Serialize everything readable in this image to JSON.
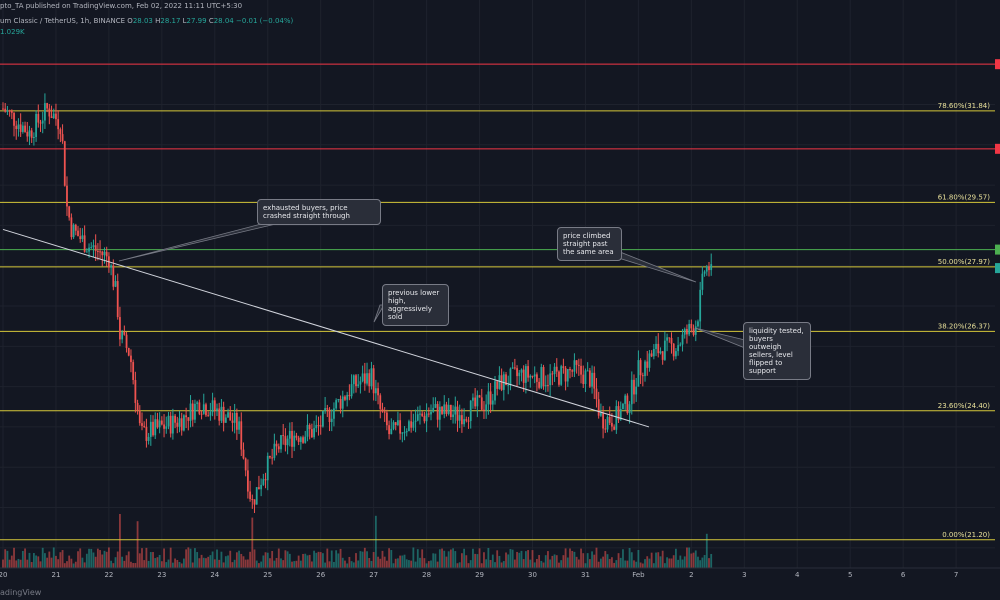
{
  "header": {
    "publisher": "pto_TA published on TradingView.com, Feb 02, 2022 11:11 UTC+5:30",
    "symbol": "um Classic / TetherUS, 1h, BINANCE",
    "ohlc": {
      "o_label": "O",
      "o": "28.03",
      "h_label": "H",
      "h": "28.17",
      "l_label": "L",
      "l": "27.99",
      "c_label": "C",
      "c": "28.04",
      "change": "−0.01 (−0.04%)"
    },
    "volume": "1.029K"
  },
  "watermark": "adingView",
  "annotations": {
    "exhausted": "exhausted buyers, price crashed straight through",
    "lower_high": "previous lower high, aggressively sold",
    "climbed": "price climbed straight past the same area",
    "liquidity": "liquidity tested, buyers outweigh sellers, level flipped to support"
  },
  "colors": {
    "background": "#131722",
    "up": "#26a69a",
    "down": "#ef5350",
    "fib_line": "#d4c73a",
    "resistance": "#f23645",
    "support": "#4caf50",
    "trendline": "#d1d4dc"
  },
  "chart_data": {
    "type": "candlestick",
    "title": "",
    "xlabel": "",
    "ylabel": "",
    "ylim": [
      20.5,
      33.6
    ],
    "x_ticks": [
      "20",
      "21",
      "22",
      "23",
      "24",
      "25",
      "26",
      "27",
      "28",
      "29",
      "30",
      "31",
      "Feb",
      "2",
      "3",
      "4",
      "5",
      "6",
      "7"
    ],
    "fib_levels": [
      {
        "label": "78.60%(31.84)",
        "value": 31.84
      },
      {
        "label": "61.80%(29.57)",
        "value": 29.57
      },
      {
        "label": "50.00%(27.97)",
        "value": 27.97
      },
      {
        "label": "38.20%(26.37)",
        "value": 26.37
      },
      {
        "label": "23.60%(24.40)",
        "value": 24.4
      },
      {
        "label": "0.00%(21.20)",
        "value": 21.2
      }
    ],
    "horizontal_levels": [
      {
        "name": "resistance",
        "value": 33.0,
        "color": "#f23645"
      },
      {
        "name": "resistance",
        "value": 30.9,
        "color": "#f23645"
      },
      {
        "name": "support",
        "value": 28.4,
        "color": "#4caf50"
      }
    ],
    "trendline": {
      "start": {
        "day": 20.0,
        "price": 28.9
      },
      "end": {
        "day": 32.2,
        "price": 24.0
      }
    },
    "price_path": [
      [
        20.0,
        31.9
      ],
      [
        20.5,
        31.3
      ],
      [
        20.85,
        31.9
      ],
      [
        21.1,
        31.5
      ],
      [
        21.2,
        29.5
      ],
      [
        21.3,
        28.9
      ],
      [
        21.6,
        28.5
      ],
      [
        22.0,
        28.2
      ],
      [
        22.15,
        27.2
      ],
      [
        22.2,
        26.3
      ],
      [
        22.4,
        25.8
      ],
      [
        22.6,
        23.8
      ],
      [
        22.8,
        23.9
      ],
      [
        23.0,
        24.0
      ],
      [
        23.4,
        24.2
      ],
      [
        23.7,
        24.6
      ],
      [
        24.2,
        24.3
      ],
      [
        24.45,
        24.0
      ],
      [
        24.7,
        22.1
      ],
      [
        24.9,
        22.8
      ],
      [
        25.2,
        23.5
      ],
      [
        25.5,
        23.8
      ],
      [
        25.9,
        23.9
      ],
      [
        26.2,
        24.4
      ],
      [
        26.6,
        25.0
      ],
      [
        26.95,
        25.3
      ],
      [
        27.1,
        24.5
      ],
      [
        27.3,
        23.8
      ],
      [
        27.7,
        24.1
      ],
      [
        28.1,
        24.4
      ],
      [
        28.6,
        24.3
      ],
      [
        29.1,
        24.6
      ],
      [
        29.4,
        25.1
      ],
      [
        29.8,
        25.3
      ],
      [
        30.3,
        25.2
      ],
      [
        30.8,
        25.4
      ],
      [
        31.1,
        25.2
      ],
      [
        31.3,
        24.2
      ],
      [
        31.55,
        24.2
      ],
      [
        31.8,
        24.6
      ],
      [
        32.0,
        25.4
      ],
      [
        32.35,
        25.9
      ],
      [
        32.7,
        26.0
      ],
      [
        32.9,
        26.3
      ],
      [
        33.1,
        26.6
      ],
      [
        33.25,
        27.9
      ],
      [
        33.4,
        28.04
      ]
    ],
    "volume_spikes": [
      {
        "day": 22.2,
        "volume": 3.0
      },
      {
        "day": 22.55,
        "volume": 2.6
      },
      {
        "day": 24.7,
        "volume": 2.8
      },
      {
        "day": 27.05,
        "volume": 2.9
      },
      {
        "day": 33.28,
        "volume": 1.9
      }
    ],
    "last_price": 28.04
  }
}
